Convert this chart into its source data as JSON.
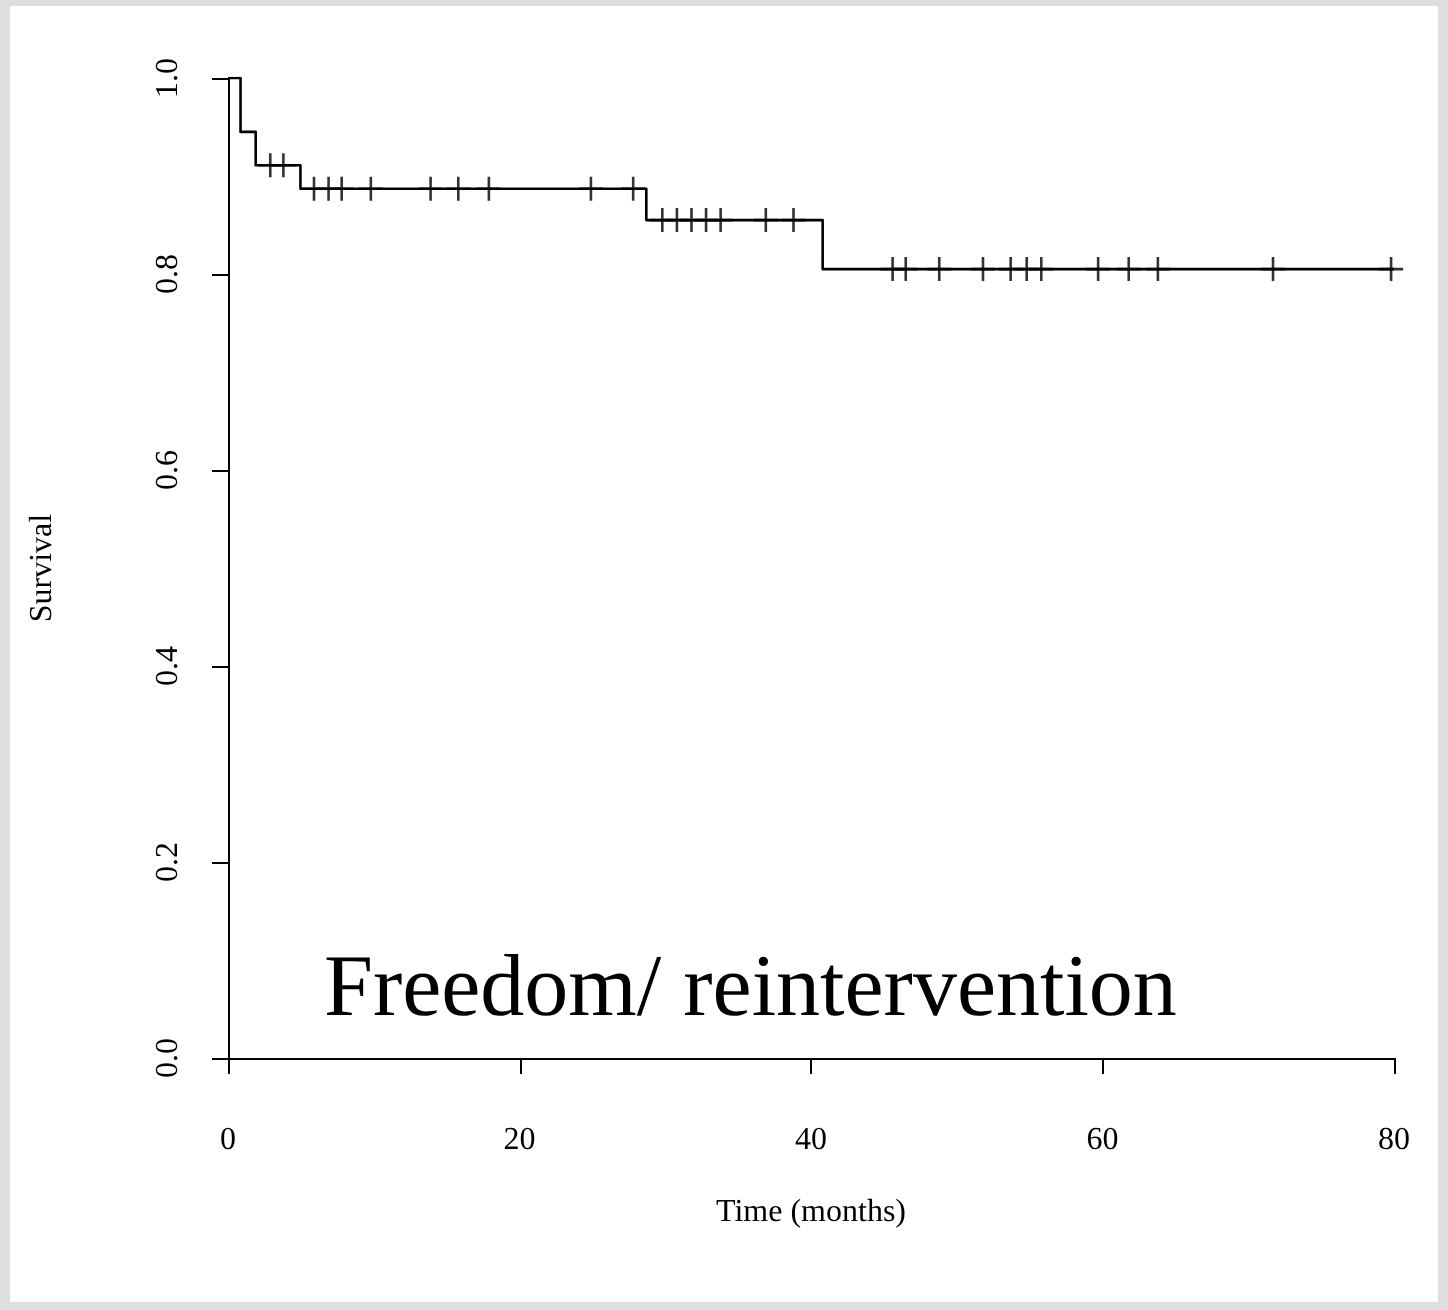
{
  "chart_data": {
    "type": "step",
    "xlabel": "Time (months)",
    "ylabel": "Survival",
    "annotations": [
      "Freedom/ reintervention"
    ],
    "xlim": [
      0,
      80
    ],
    "ylim": [
      0,
      1
    ],
    "xticks": [
      0,
      20,
      40,
      60,
      80
    ],
    "yticks": [
      {
        "value": 0,
        "label": "0.0"
      },
      0.2,
      0.4,
      0.6,
      0.8,
      {
        "value": 1,
        "label": "1.0"
      }
    ],
    "series": [
      {
        "color": "#000000",
        "x": [
          0,
          0.86,
          1.9,
          4.97,
          28.7,
          40.8,
          80
        ],
        "values": [
          1,
          0.945,
          0.911,
          0.887,
          0.855,
          0.805,
          0.805
        ]
      },
      {
        "type": "scatter",
        "color": "#000000",
        "marker": "cross",
        "x": [
          2.9,
          3.8,
          5.9,
          6.9,
          7.8,
          9.8,
          13.9,
          15.8,
          17.9,
          24.9,
          27.8,
          29.8,
          30.8,
          31.8,
          32.8,
          33.8,
          36.9,
          38.8,
          45.6,
          46.5,
          48.8,
          51.8,
          53.7,
          54.8,
          55.8,
          59.7,
          61.8,
          63.8,
          71.7,
          79.8
        ],
        "values": [
          0.911,
          0.911,
          0.887,
          0.887,
          0.887,
          0.887,
          0.887,
          0.887,
          0.887,
          0.887,
          0.887,
          0.855,
          0.855,
          0.855,
          0.855,
          0.855,
          0.855,
          0.855,
          0.805,
          0.805,
          0.805,
          0.805,
          0.805,
          0.805,
          0.805,
          0.805,
          0.805,
          0.805,
          0.805,
          0.805
        ]
      }
    ]
  }
}
